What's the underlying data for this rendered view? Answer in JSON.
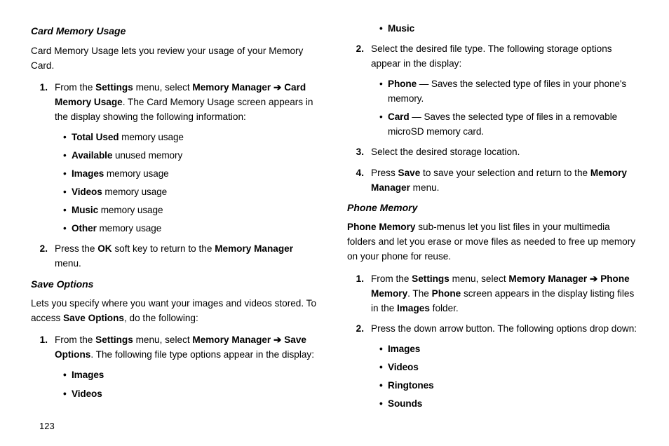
{
  "page_number": "123",
  "left": {
    "section1": {
      "title": "Card Memory Usage",
      "intro": "Card Memory Usage lets you review your usage of your Memory Card.",
      "step1_num": "1.",
      "step1_pre": "From the ",
      "step1_settings": "Settings",
      "step1_mid1": " menu, select ",
      "step1_mm": "Memory Manager",
      "step1_arrow": " ➔ ",
      "step1_cmu": "Card Memory Usage",
      "step1_post": ". The Card Memory Usage screen appears in the display showing the following information:",
      "b1_bold": "Total Used",
      "b1_rest": " memory usage",
      "b2_bold": "Available",
      "b2_rest": " unused memory",
      "b3_bold": "Images",
      "b3_rest": " memory usage",
      "b4_bold": "Videos",
      "b4_rest": " memory usage",
      "b5_bold": "Music",
      "b5_rest": " memory usage",
      "b6_bold": "Other",
      "b6_rest": " memory usage",
      "step2_num": "2.",
      "step2_pre": "Press the ",
      "step2_ok": "OK",
      "step2_mid": " soft key to return to the ",
      "step2_mm": "Memory Manager",
      "step2_post": " menu."
    },
    "section2": {
      "title": "Save Options",
      "intro_pre": "Lets you specify where you want your images and videos stored. To access ",
      "intro_bold": "Save Options",
      "intro_post": ", do the following:",
      "step1_num": "1.",
      "step1_pre": "From the ",
      "step1_settings": "Settings",
      "step1_mid1": " menu, select ",
      "step1_mm": "Memory Manager",
      "step1_arrow": " ➔ ",
      "step1_so": "Save Options",
      "step1_post": ". The following file type options appear in the display:",
      "b1": "Images",
      "b2": "Videos"
    }
  },
  "right": {
    "cont": {
      "b1": "Music",
      "step2_num": "2.",
      "step2_text": "Select the desired file type. The following storage options appear in the display:",
      "sb1_bold": "Phone",
      "sb1_dash": " — ",
      "sb1_rest": "Saves the selected type of files in your phone's memory.",
      "sb2_bold": "Card",
      "sb2_dash": " — ",
      "sb2_rest": "Saves the selected type of files in a removable microSD memory card.",
      "step3_num": "3.",
      "step3_text": "Select the desired storage location.",
      "step4_num": "4.",
      "step4_pre": "Press ",
      "step4_save": "Save",
      "step4_mid": " to save your selection and return to the ",
      "step4_mm": "Memory Manager",
      "step4_post": " menu."
    },
    "section3": {
      "title": "Phone Memory",
      "intro_bold": "Phone Memory",
      "intro_rest": " sub-menus let you list files in your multimedia folders and let you erase or move files as needed to free up memory on your phone for reuse.",
      "step1_num": "1.",
      "step1_pre": "From the ",
      "step1_settings": "Settings",
      "step1_mid1": " menu, select ",
      "step1_mm": "Memory Manager",
      "step1_arrow": " ➔ ",
      "step1_pm": "Phone Memory",
      "step1_mid2": ". The ",
      "step1_phone": "Phone",
      "step1_mid3": " screen appears in the display listing files in the ",
      "step1_images": "Images",
      "step1_post": " folder.",
      "step2_num": "2.",
      "step2_text": "Press the down arrow button. The following options drop down:",
      "b1": "Images",
      "b2": "Videos",
      "b3": "Ringtones",
      "b4": "Sounds"
    }
  }
}
